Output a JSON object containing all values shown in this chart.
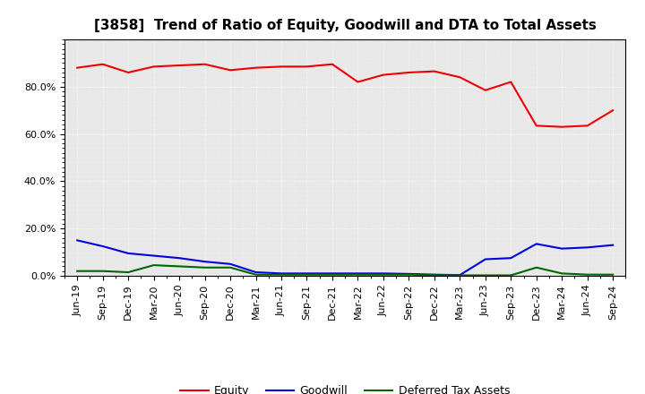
{
  "title": "[3858]  Trend of Ratio of Equity, Goodwill and DTA to Total Assets",
  "x_labels": [
    "Jun-19",
    "Sep-19",
    "Dec-19",
    "Mar-20",
    "Jun-20",
    "Sep-20",
    "Dec-20",
    "Mar-21",
    "Jun-21",
    "Sep-21",
    "Dec-21",
    "Mar-22",
    "Jun-22",
    "Sep-22",
    "Dec-22",
    "Mar-23",
    "Jun-23",
    "Sep-23",
    "Dec-23",
    "Mar-24",
    "Jun-24",
    "Sep-24"
  ],
  "equity": [
    88.0,
    89.5,
    86.0,
    88.5,
    89.0,
    89.5,
    87.0,
    88.0,
    88.5,
    88.5,
    89.5,
    82.0,
    85.0,
    86.0,
    86.5,
    84.0,
    78.5,
    82.0,
    63.5,
    63.0,
    63.5,
    70.0
  ],
  "goodwill": [
    15.0,
    12.5,
    9.5,
    8.5,
    7.5,
    6.0,
    5.0,
    1.5,
    1.0,
    1.0,
    1.0,
    1.0,
    1.0,
    0.8,
    0.5,
    0.3,
    7.0,
    7.5,
    13.5,
    11.5,
    12.0,
    13.0
  ],
  "dta": [
    2.0,
    2.0,
    1.5,
    4.5,
    4.0,
    3.5,
    3.5,
    0.5,
    0.5,
    0.5,
    0.5,
    0.5,
    0.5,
    0.5,
    0.3,
    0.2,
    0.2,
    0.2,
    3.5,
    1.0,
    0.5,
    0.5
  ],
  "equity_color": "#ee0000",
  "goodwill_color": "#0000dd",
  "dta_color": "#006600",
  "ylim": [
    0,
    100
  ],
  "yticks": [
    0,
    20,
    40,
    60,
    80
  ],
  "legend_labels": [
    "Equity",
    "Goodwill",
    "Deferred Tax Assets"
  ],
  "plot_bg_color": "#e8e8e8",
  "fig_bg_color": "#ffffff",
  "grid_color": "#ffffff",
  "title_fontsize": 11,
  "tick_fontsize": 8,
  "legend_fontsize": 9,
  "linewidth": 1.5
}
